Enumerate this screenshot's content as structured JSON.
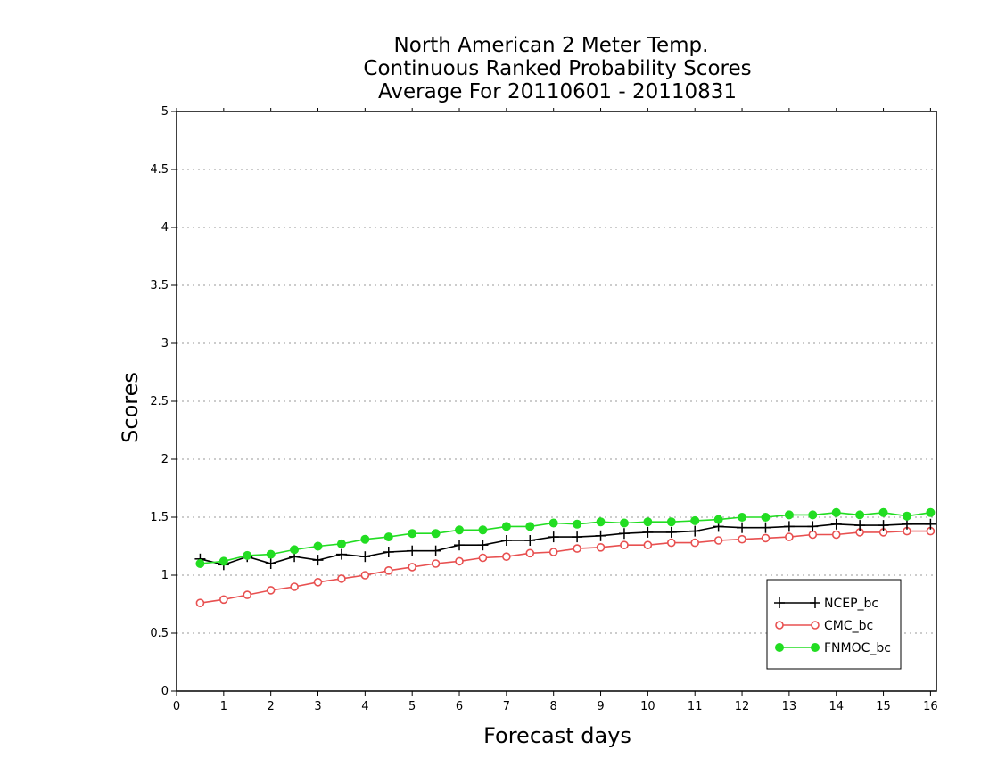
{
  "chart_data": {
    "type": "line",
    "title": [
      "North American 2 Meter Temp.",
      "Continuous Ranked Probability Scores",
      "Average For 20110601 - 20110831"
    ],
    "xlabel": "Forecast days",
    "ylabel": "Scores",
    "xlim": [
      0,
      16.125
    ],
    "ylim": [
      0,
      5
    ],
    "xticks": [
      "0",
      "1",
      "2",
      "3",
      "4",
      "5",
      "6",
      "7",
      "8",
      "9",
      "10",
      "11",
      "12",
      "13",
      "14",
      "15",
      "16"
    ],
    "yticks": [
      "0",
      "0.5",
      "1",
      "1.5",
      "2",
      "2.5",
      "3",
      "3.5",
      "4",
      "4.5",
      "5"
    ],
    "grid": "horizontal-dotted",
    "legend_position": "bottom-right",
    "x": [
      0.5,
      1,
      1.5,
      2,
      2.5,
      3,
      3.5,
      4,
      4.5,
      5,
      5.5,
      6,
      6.5,
      7,
      7.5,
      8,
      8.5,
      9,
      9.5,
      10,
      10.5,
      11,
      11.5,
      12,
      12.5,
      13,
      13.5,
      14,
      14.5,
      15,
      15.5,
      16
    ],
    "series": [
      {
        "name": "NCEP_bc",
        "color": "#000000",
        "marker": "plus",
        "values": [
          1.14,
          1.09,
          1.16,
          1.1,
          1.16,
          1.13,
          1.18,
          1.16,
          1.2,
          1.21,
          1.21,
          1.26,
          1.26,
          1.3,
          1.3,
          1.33,
          1.33,
          1.34,
          1.36,
          1.37,
          1.37,
          1.38,
          1.42,
          1.41,
          1.41,
          1.42,
          1.42,
          1.44,
          1.43,
          1.43,
          1.44,
          1.44
        ]
      },
      {
        "name": "CMC_bc",
        "color": "#e85050",
        "marker": "open-circle",
        "values": [
          0.76,
          0.79,
          0.83,
          0.87,
          0.9,
          0.94,
          0.97,
          1.0,
          1.04,
          1.07,
          1.1,
          1.12,
          1.15,
          1.16,
          1.19,
          1.2,
          1.23,
          1.24,
          1.26,
          1.26,
          1.28,
          1.28,
          1.3,
          1.31,
          1.32,
          1.33,
          1.35,
          1.35,
          1.37,
          1.37,
          1.38,
          1.38
        ]
      },
      {
        "name": "FNMOC_bc",
        "color": "#22dd22",
        "marker": "filled-circle",
        "values": [
          1.1,
          1.12,
          1.17,
          1.18,
          1.22,
          1.25,
          1.27,
          1.31,
          1.33,
          1.36,
          1.36,
          1.39,
          1.39,
          1.42,
          1.42,
          1.45,
          1.44,
          1.46,
          1.45,
          1.46,
          1.46,
          1.47,
          1.48,
          1.5,
          1.5,
          1.52,
          1.52,
          1.54,
          1.52,
          1.54,
          1.51,
          1.54
        ]
      }
    ]
  }
}
